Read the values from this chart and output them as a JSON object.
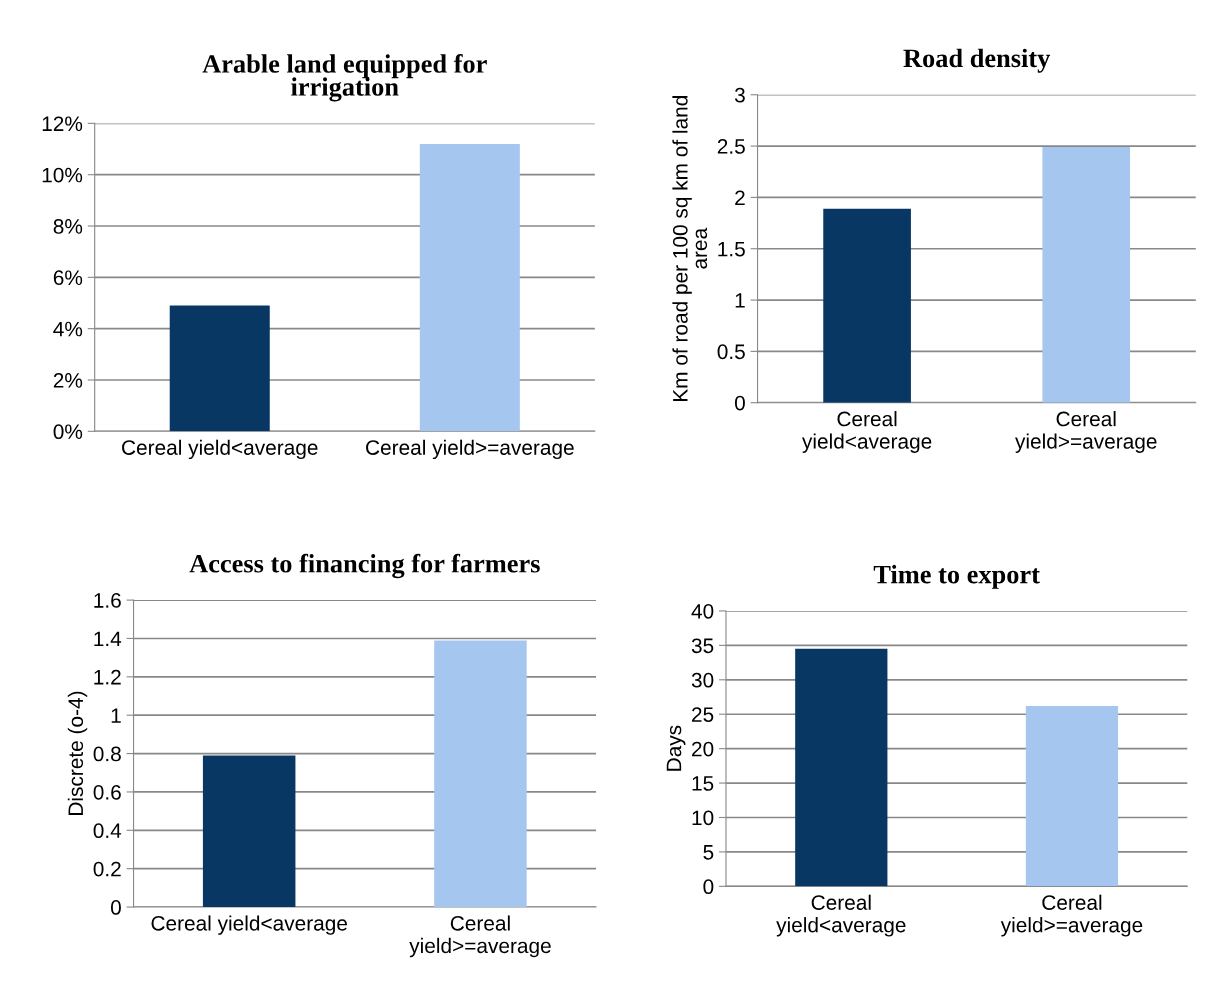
{
  "chart_data": [
    {
      "type": "bar",
      "title": "Arable land equipped for\nirrigation",
      "categories": [
        "Cereal yield<average",
        "Cereal yield>=average"
      ],
      "values": [
        4.9,
        11.2
      ],
      "colors": [
        "#083763",
        "#a5c6ee"
      ],
      "ylim": [
        0,
        12
      ],
      "yticks": [
        {
          "value": 0,
          "label": "0%"
        },
        {
          "value": 2,
          "label": "2%"
        },
        {
          "value": 4,
          "label": "4%"
        },
        {
          "value": 6,
          "label": "6%"
        },
        {
          "value": 8,
          "label": "8%"
        },
        {
          "value": 10,
          "label": "10%"
        },
        {
          "value": 12,
          "label": "12%"
        }
      ],
      "grid": "y"
    },
    {
      "type": "bar",
      "title": "Road density",
      "ylabel": "Km of road per 100 sq km of land\narea",
      "categories": [
        "Cereal\nyield<average",
        "Cereal\nyield>=average"
      ],
      "values": [
        1.89,
        2.49
      ],
      "colors": [
        "#083763",
        "#a5c6ee"
      ],
      "ylim": [
        0,
        3
      ],
      "yticks": [
        0,
        0.5,
        1,
        1.5,
        2,
        2.5,
        3
      ],
      "grid": "y"
    },
    {
      "type": "bar",
      "title": "Access to financing for farmers",
      "ylabel": "Discrete (o-4)",
      "categories": [
        "Cereal yield<average",
        "Cereal\nyield>=average"
      ],
      "values": [
        0.79,
        1.39
      ],
      "colors": [
        "#083763",
        "#a5c6ee"
      ],
      "ylim": [
        0,
        1.6
      ],
      "yticks": [
        0,
        0.2,
        0.4,
        0.6,
        0.8,
        1,
        1.2,
        1.4,
        1.6
      ],
      "grid": "y"
    },
    {
      "type": "bar",
      "title": "Time to export",
      "ylabel": "Days",
      "categories": [
        "Cereal\nyield<average",
        "Cereal\nyield>=average"
      ],
      "values": [
        34.5,
        26.2
      ],
      "colors": [
        "#083763",
        "#a5c6ee"
      ],
      "ylim": [
        0,
        40
      ],
      "yticks": [
        0,
        5,
        10,
        15,
        20,
        25,
        30,
        35,
        40
      ],
      "grid": "y"
    }
  ]
}
